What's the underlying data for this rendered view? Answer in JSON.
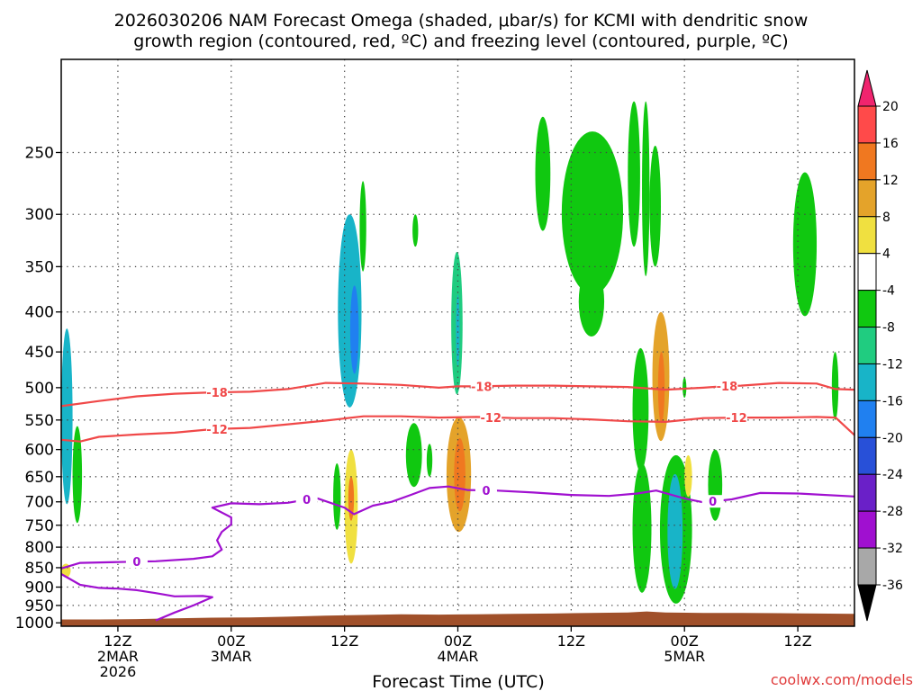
{
  "chart_data": {
    "type": "heatmap",
    "title_lines": [
      "2026030206 NAM Forecast Omega (shaded, μbar/s) for KCMI with dendritic snow",
      "growth region (contoured, red, ºC) and freezing level (contoured, purple, ºC)"
    ],
    "xlabel": "Forecast Time (UTC)",
    "ylabel": "",
    "y_axis": {
      "units": "hPa",
      "scale": "log-pressure",
      "ylim": [
        1010,
        190
      ],
      "ticks": [
        250,
        300,
        350,
        400,
        450,
        500,
        550,
        600,
        650,
        700,
        750,
        800,
        850,
        900,
        950,
        1000
      ]
    },
    "x_axis": {
      "xlim_hours": [
        0,
        84
      ],
      "ticks": [
        {
          "hour": 6,
          "lines": [
            "12Z",
            "2MAR",
            "2026"
          ]
        },
        {
          "hour": 18,
          "lines": [
            "00Z",
            "3MAR"
          ]
        },
        {
          "hour": 30,
          "lines": [
            "12Z"
          ]
        },
        {
          "hour": 42,
          "lines": [
            "00Z",
            "4MAR"
          ]
        },
        {
          "hour": 54,
          "lines": [
            "12Z"
          ]
        },
        {
          "hour": 66,
          "lines": [
            "00Z",
            "5MAR"
          ]
        },
        {
          "hour": 78,
          "lines": [
            "12Z"
          ]
        }
      ]
    },
    "grid": true,
    "colorbar": {
      "levels": [
        "20",
        "16",
        "12",
        "8",
        "4",
        "-4",
        "-8",
        "-12",
        "-16",
        "-20",
        "-24",
        "-28",
        "-32",
        "-36"
      ],
      "colors": [
        "#f0246e",
        "#ff4a4a",
        "#f07820",
        "#e4a32a",
        "#f0e040",
        "#ffffff",
        "#10c810",
        "#20cc80",
        "#18b4c8",
        "#2080f0",
        "#2850d8",
        "#6a20c8",
        "#a010d0",
        "#a8a8a8",
        "#000000"
      ]
    },
    "series": [
      {
        "name": "-18",
        "color": "#f04848",
        "label_hours": [
          16.5,
          44.5,
          70.5
        ],
        "points": [
          [
            0,
            528
          ],
          [
            4,
            520
          ],
          [
            8,
            513
          ],
          [
            12,
            509
          ],
          [
            16,
            507
          ],
          [
            20,
            506
          ],
          [
            24,
            502
          ],
          [
            28,
            493
          ],
          [
            32,
            494
          ],
          [
            36,
            496
          ],
          [
            40,
            500
          ],
          [
            42,
            498
          ],
          [
            44,
            498
          ],
          [
            48,
            497
          ],
          [
            52,
            497
          ],
          [
            56,
            498
          ],
          [
            60,
            499
          ],
          [
            64,
            503
          ],
          [
            68,
            500
          ],
          [
            70,
            498
          ],
          [
            72,
            497
          ],
          [
            76,
            493
          ],
          [
            80,
            494
          ],
          [
            82,
            502
          ],
          [
            84,
            503
          ]
        ]
      },
      {
        "name": "-12",
        "color": "#f04848",
        "label_hours": [
          16.5,
          45.5,
          71.5
        ],
        "points": [
          [
            0,
            583
          ],
          [
            2,
            586
          ],
          [
            4,
            578
          ],
          [
            8,
            574
          ],
          [
            12,
            571
          ],
          [
            16,
            565
          ],
          [
            20,
            563
          ],
          [
            24,
            557
          ],
          [
            28,
            551
          ],
          [
            32,
            544
          ],
          [
            36,
            544
          ],
          [
            40,
            546
          ],
          [
            44,
            545
          ],
          [
            48,
            547
          ],
          [
            52,
            547
          ],
          [
            56,
            549
          ],
          [
            60,
            552
          ],
          [
            64,
            553
          ],
          [
            68,
            547
          ],
          [
            72,
            546
          ],
          [
            76,
            546
          ],
          [
            80,
            545
          ],
          [
            82,
            546
          ],
          [
            84,
            575
          ]
        ]
      },
      {
        "name": "0",
        "color": "#a010d0",
        "label_hours": [
          8,
          26,
          45,
          69
        ],
        "points": [
          [
            0,
            852
          ],
          [
            2,
            838
          ],
          [
            6,
            836
          ],
          [
            10,
            834
          ],
          [
            14,
            828
          ],
          [
            16,
            822
          ],
          [
            17,
            806
          ],
          [
            16.5,
            784
          ],
          [
            17,
            765
          ],
          [
            18,
            748
          ],
          [
            18,
            733
          ],
          [
            16,
            712
          ],
          [
            18,
            703
          ],
          [
            21,
            705
          ],
          [
            24,
            702
          ],
          [
            27,
            692
          ],
          [
            30,
            712
          ],
          [
            31,
            726
          ],
          [
            33,
            708
          ],
          [
            35,
            700
          ],
          [
            37,
            686
          ],
          [
            39,
            672
          ],
          [
            41,
            669
          ],
          [
            43,
            676
          ],
          [
            46,
            677
          ],
          [
            50,
            681
          ],
          [
            54,
            686
          ],
          [
            58,
            688
          ],
          [
            61,
            683
          ],
          [
            63,
            677
          ],
          [
            66,
            693
          ],
          [
            68,
            701
          ],
          [
            71,
            695
          ],
          [
            74,
            682
          ],
          [
            78,
            683
          ],
          [
            84,
            689
          ]
        ]
      },
      {
        "name": "0 (low)",
        "color": "#a010d0",
        "points": [
          [
            0,
            866
          ],
          [
            2,
            894
          ],
          [
            4,
            902
          ],
          [
            6,
            904
          ],
          [
            8,
            908
          ],
          [
            10,
            916
          ],
          [
            12,
            925
          ],
          [
            15,
            924
          ],
          [
            16,
            927
          ],
          [
            14,
            950
          ],
          [
            12,
            970
          ],
          [
            10,
            993
          ]
        ]
      }
    ],
    "omega_cells": [
      {
        "t": [
          0,
          1.2
        ],
        "p": [
          420,
          705
        ],
        "v": -12
      },
      {
        "t": [
          1.2,
          2.2
        ],
        "p": [
          560,
          745
        ],
        "v": -4
      },
      {
        "t": [
          0,
          1
        ],
        "p": [
          840,
          875
        ],
        "v": 4
      },
      {
        "t": [
          29.3,
          31.8
        ],
        "p": [
          300,
          530
        ],
        "v": -12
      },
      {
        "t": [
          30.6,
          31.5
        ],
        "p": [
          370,
          480
        ],
        "v": -16
      },
      {
        "t": [
          31.6,
          32.3
        ],
        "p": [
          272,
          355
        ],
        "v": -4
      },
      {
        "t": [
          28.8,
          29.6
        ],
        "p": [
          625,
          760
        ],
        "v": -4
      },
      {
        "t": [
          30,
          31.4
        ],
        "p": [
          600,
          840
        ],
        "v": 4
      },
      {
        "t": [
          30.4,
          31
        ],
        "p": [
          650,
          740
        ],
        "v": 12
      },
      {
        "t": [
          36.5,
          38.2
        ],
        "p": [
          555,
          670
        ],
        "v": -4
      },
      {
        "t": [
          37.2,
          37.8
        ],
        "p": [
          300,
          330
        ],
        "v": -4
      },
      {
        "t": [
          38.7,
          39.3
        ],
        "p": [
          590,
          650
        ],
        "v": -4
      },
      {
        "t": [
          41.3,
          42.5
        ],
        "p": [
          335,
          510
        ],
        "v": -8
      },
      {
        "t": [
          41.8,
          42.2
        ],
        "p": [
          380,
          470
        ],
        "v": -12
      },
      {
        "t": [
          40.8,
          43.4
        ],
        "p": [
          545,
          765
        ],
        "v": 8
      },
      {
        "t": [
          41.6,
          42.8
        ],
        "p": [
          580,
          720
        ],
        "v": 12
      },
      {
        "t": [
          50.2,
          51.8
        ],
        "p": [
          225,
          315
        ],
        "v": -4
      },
      {
        "t": [
          53,
          59.5
        ],
        "p": [
          235,
          380
        ],
        "v": -4
      },
      {
        "t": [
          54.8,
          57.5
        ],
        "p": [
          350,
          430
        ],
        "v": -4
      },
      {
        "t": [
          60,
          61.3
        ],
        "p": [
          215,
          330
        ],
        "v": -4
      },
      {
        "t": [
          61.5,
          62.3
        ],
        "p": [
          215,
          360
        ],
        "v": -4
      },
      {
        "t": [
          62.3,
          63.5
        ],
        "p": [
          245,
          350
        ],
        "v": -4
      },
      {
        "t": [
          60.5,
          62.2
        ],
        "p": [
          445,
          640
        ],
        "v": -4
      },
      {
        "t": [
          60.5,
          62.5
        ],
        "p": [
          625,
          915
        ],
        "v": -4
      },
      {
        "t": [
          63.4,
          66.8
        ],
        "p": [
          610,
          945
        ],
        "v": -4
      },
      {
        "t": [
          64.2,
          65.8
        ],
        "p": [
          645,
          905
        ],
        "v": -12
      },
      {
        "t": [
          62.6,
          64.4
        ],
        "p": [
          400,
          585
        ],
        "v": 8
      },
      {
        "t": [
          63.2,
          63.9
        ],
        "p": [
          450,
          555
        ],
        "v": 12
      },
      {
        "t": [
          65.8,
          66.2
        ],
        "p": [
          485,
          515
        ],
        "v": -4
      },
      {
        "t": [
          66,
          66.8
        ],
        "p": [
          610,
          690
        ],
        "v": 4
      },
      {
        "t": [
          68.5,
          70
        ],
        "p": [
          600,
          740
        ],
        "v": -4
      },
      {
        "t": [
          77.5,
          80
        ],
        "p": [
          265,
          405
        ],
        "v": -4
      },
      {
        "t": [
          81.6,
          82.3
        ],
        "p": [
          450,
          550
        ],
        "v": -4
      }
    ],
    "terrain": {
      "color": "#a0502a",
      "points": [
        [
          0,
          990
        ],
        [
          4,
          990
        ],
        [
          8,
          989
        ],
        [
          12,
          987
        ],
        [
          16,
          985
        ],
        [
          20,
          984
        ],
        [
          24,
          982
        ],
        [
          28,
          979
        ],
        [
          32,
          977
        ],
        [
          36,
          975
        ],
        [
          40,
          976
        ],
        [
          44,
          975
        ],
        [
          48,
          974
        ],
        [
          52,
          973
        ],
        [
          56,
          971
        ],
        [
          60,
          970
        ],
        [
          62,
          967
        ],
        [
          64,
          970
        ],
        [
          68,
          971
        ],
        [
          72,
          971
        ],
        [
          76,
          972
        ],
        [
          80,
          973
        ],
        [
          84,
          974
        ]
      ]
    }
  },
  "credit": "coolwx.com/models"
}
